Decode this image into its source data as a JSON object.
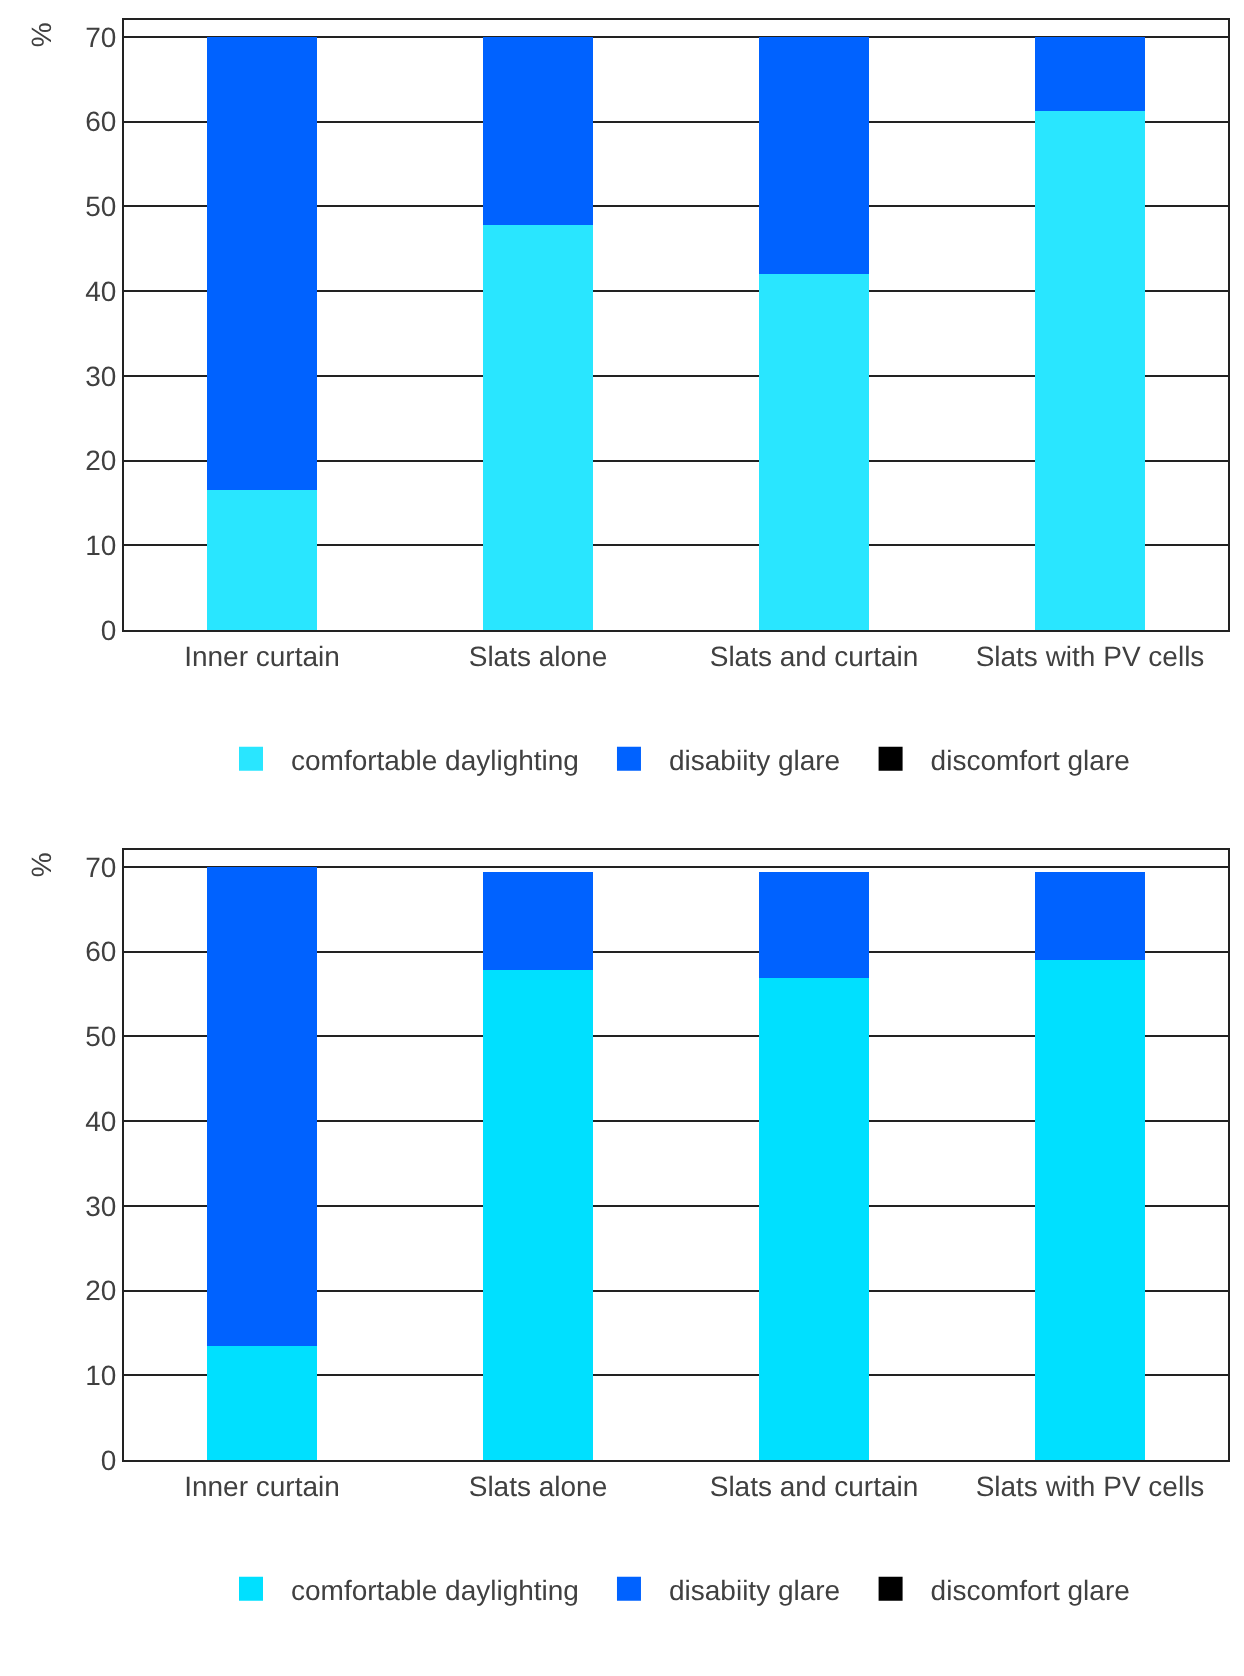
{
  "chart_data": [
    {
      "type": "bar",
      "stacked": true,
      "ylabel": "%",
      "categories": [
        "Inner curtain",
        "Slats alone",
        "Slats and curtain",
        "Slats with PV cells"
      ],
      "ylim": [
        0,
        72
      ],
      "yticks": [
        0,
        10,
        20,
        30,
        40,
        50,
        60,
        70
      ],
      "grid": "y",
      "legend": "bottom",
      "series": [
        {
          "name": "comfortable daylighting",
          "color": "#29e6ff",
          "values": [
            16.5,
            47.8,
            42,
            61.3
          ]
        },
        {
          "name": "disabiity glare",
          "color": "#0062ff",
          "values": [
            53.5,
            22.2,
            28,
            8.7
          ]
        },
        {
          "name": "discomfort glare",
          "color": "#000000",
          "values": [
            0,
            0,
            0,
            0
          ]
        }
      ]
    },
    {
      "type": "bar",
      "stacked": true,
      "ylabel": "%",
      "categories": [
        "Inner curtain",
        "Slats alone",
        "Slats and curtain",
        "Slats with PV cells"
      ],
      "ylim": [
        0,
        72
      ],
      "yticks": [
        0,
        10,
        20,
        30,
        40,
        50,
        60,
        70
      ],
      "grid": "y",
      "legend": "bottom",
      "series": [
        {
          "name": "comfortable daylighting",
          "color": "#00e0ff",
          "values": [
            13.5,
            57.8,
            56.9,
            59
          ]
        },
        {
          "name": "disabiity glare",
          "color": "#0062ff",
          "values": [
            56.5,
            11.6,
            12.5,
            10.4
          ]
        },
        {
          "name": "discomfort glare",
          "color": "#000000",
          "values": [
            0,
            0,
            0,
            0
          ]
        }
      ]
    }
  ]
}
